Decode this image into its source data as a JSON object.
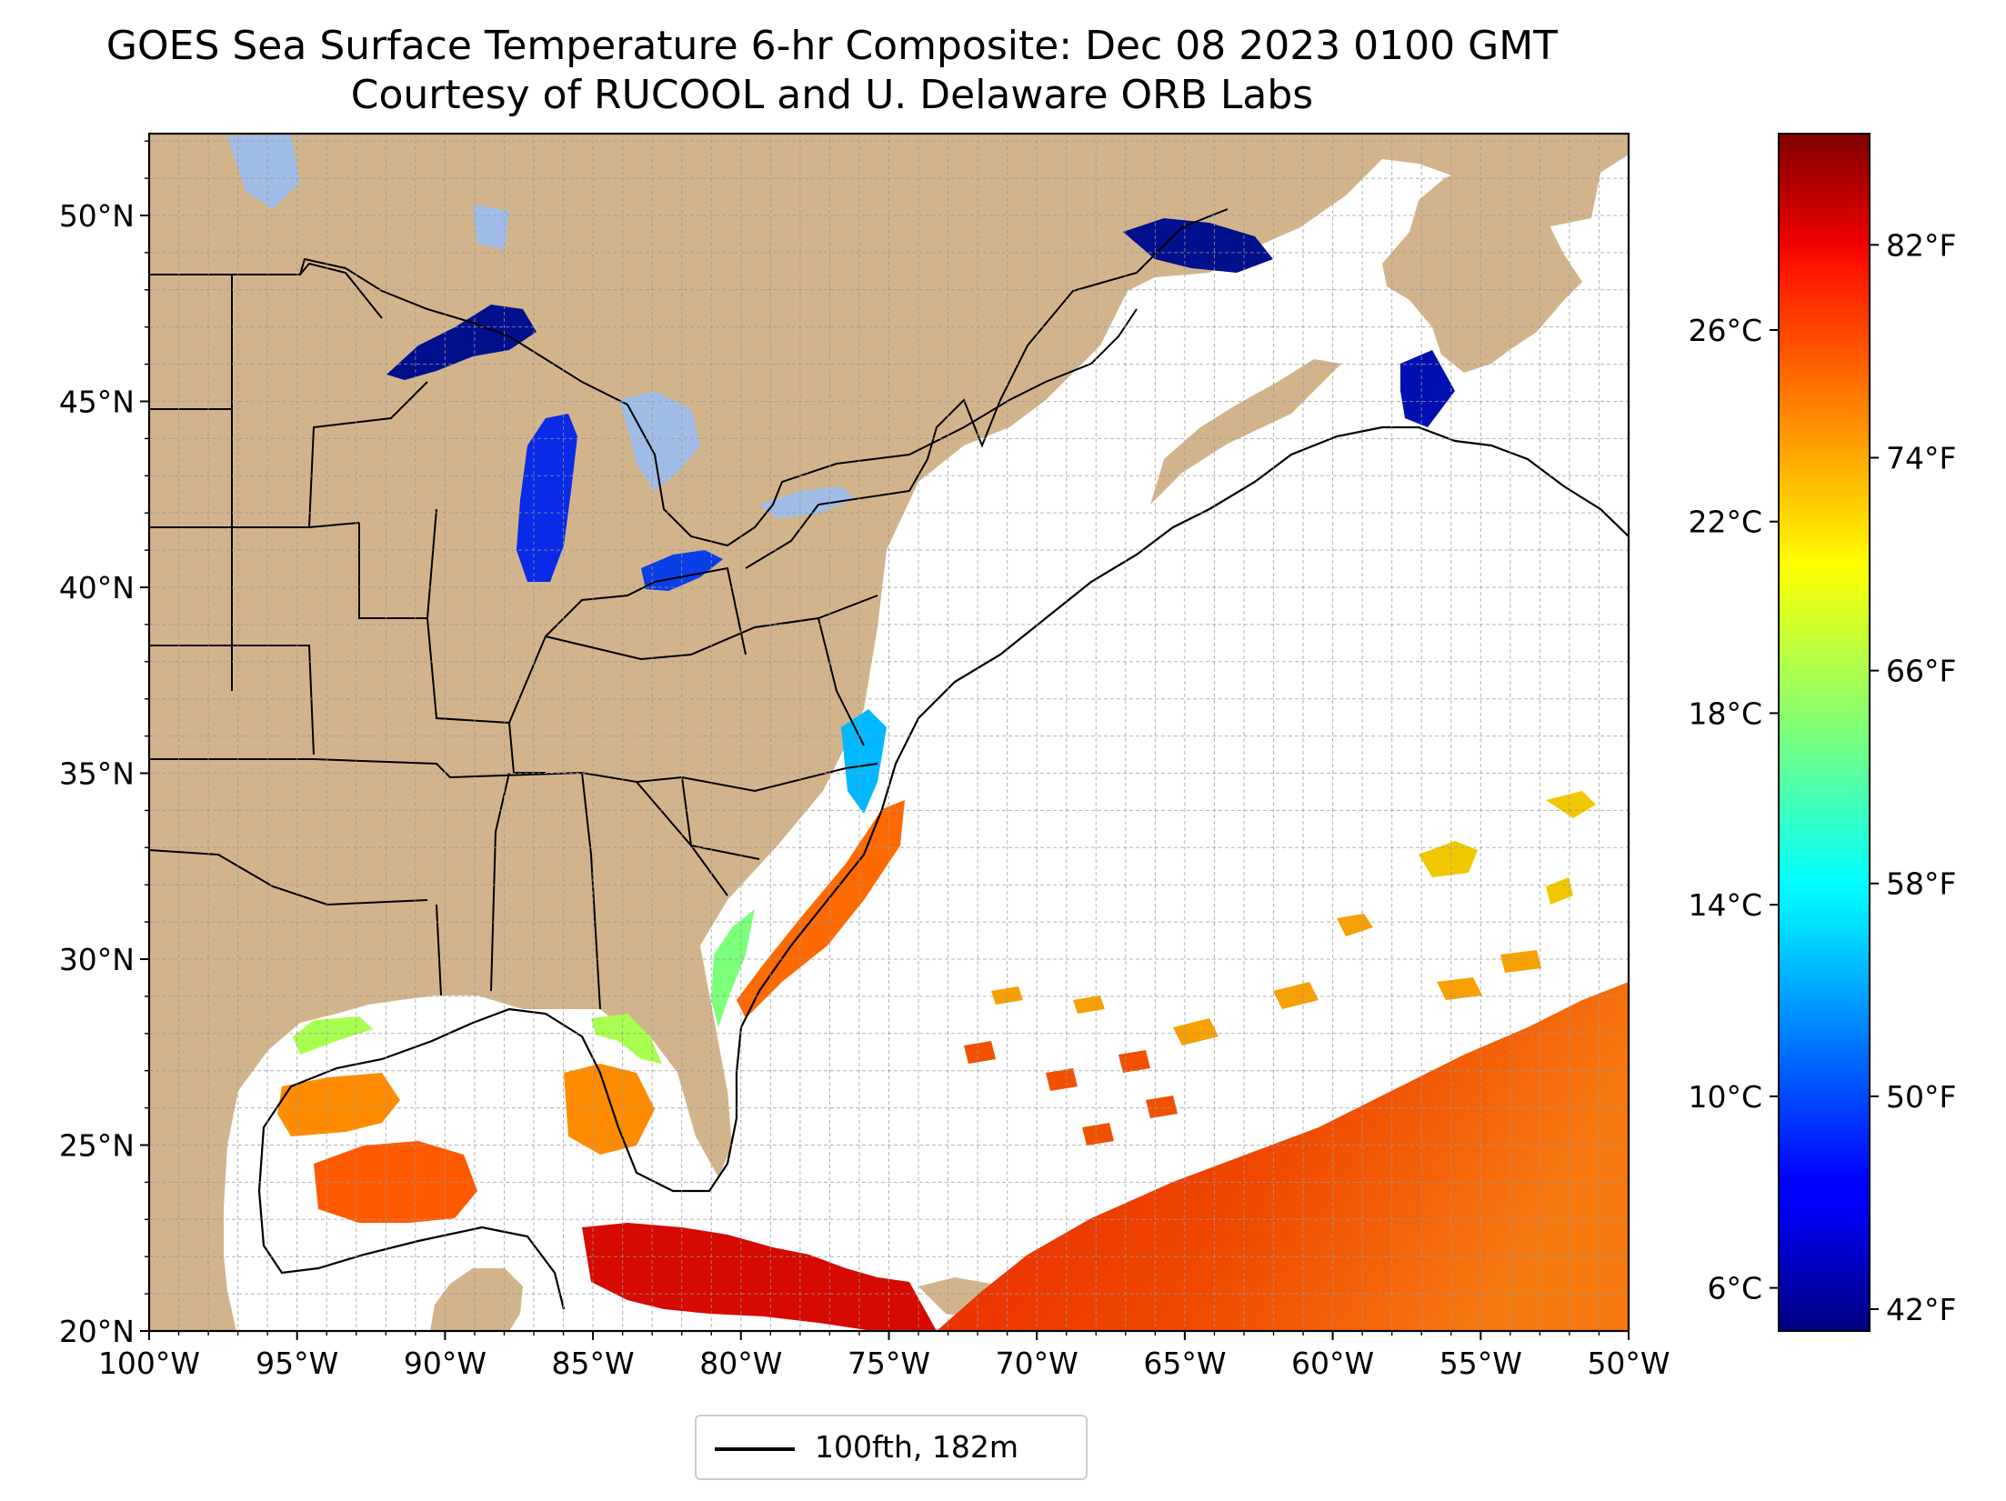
{
  "title": {
    "line1": "GOES Sea Surface Temperature 6-hr Composite: Dec 08 2023 0100 GMT",
    "line2": "Courtesy of RUCOOL and U. Delaware ORB Labs"
  },
  "map": {
    "lon_range": [
      -100,
      -50
    ],
    "lat_range": [
      20,
      52.2
    ],
    "grid": true,
    "land_color": "#d2b48c",
    "ocean_color": "#ffffff",
    "lakes_color": "#9fbde6",
    "lon_ticks": [
      {
        "value": -100,
        "label": "100°W"
      },
      {
        "value": -95,
        "label": "95°W"
      },
      {
        "value": -90,
        "label": "90°W"
      },
      {
        "value": -85,
        "label": "85°W"
      },
      {
        "value": -80,
        "label": "80°W"
      },
      {
        "value": -75,
        "label": "75°W"
      },
      {
        "value": -70,
        "label": "70°W"
      },
      {
        "value": -65,
        "label": "65°W"
      },
      {
        "value": -60,
        "label": "60°W"
      },
      {
        "value": -55,
        "label": "55°W"
      },
      {
        "value": -50,
        "label": "50°W"
      }
    ],
    "lat_ticks": [
      {
        "value": 20,
        "label": "20°N"
      },
      {
        "value": 25,
        "label": "25°N"
      },
      {
        "value": 30,
        "label": "30°N"
      },
      {
        "value": 35,
        "label": "35°N"
      },
      {
        "value": 40,
        "label": "40°N"
      },
      {
        "value": 45,
        "label": "45°N"
      },
      {
        "value": 50,
        "label": "50°N"
      }
    ]
  },
  "colorbar": {
    "colormap": "jet",
    "range_c": [
      5.1,
      30.1
    ],
    "celsius_ticks": [
      {
        "value": 6,
        "label": "6°C"
      },
      {
        "value": 10,
        "label": "10°C"
      },
      {
        "value": 14,
        "label": "14°C"
      },
      {
        "value": 18,
        "label": "18°C"
      },
      {
        "value": 22,
        "label": "22°C"
      },
      {
        "value": 26,
        "label": "26°C"
      }
    ],
    "fahrenheit_ticks": [
      {
        "value": 42,
        "label": "42°F"
      },
      {
        "value": 50,
        "label": "50°F"
      },
      {
        "value": 58,
        "label": "58°F"
      },
      {
        "value": 66,
        "label": "66°F"
      },
      {
        "value": 74,
        "label": "74°F"
      },
      {
        "value": 82,
        "label": "82°F"
      }
    ]
  },
  "legend": {
    "label": "100fth, 182m",
    "line_color": "#000000"
  }
}
